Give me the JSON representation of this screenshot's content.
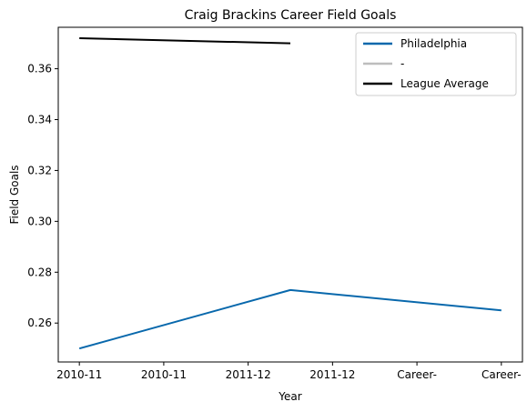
{
  "chart_data": {
    "type": "line",
    "title": "Craig Brackins Career Field Goals",
    "xlabel": "Year",
    "ylabel": "Field Goals",
    "x": [
      0,
      1,
      2,
      3,
      4,
      5
    ],
    "x_tick_labels": [
      "2010-11",
      "2010-11",
      "2011-12",
      "2011-12",
      "Career-",
      "Career-"
    ],
    "y_ticks": [
      0.26,
      0.28,
      0.3,
      0.32,
      0.34,
      0.36
    ],
    "y_tick_labels": [
      "0.26",
      "0.28",
      "0.30",
      "0.32",
      "0.34",
      "0.36"
    ],
    "xlim": [
      -0.25,
      5.25
    ],
    "ylim": [
      0.2447,
      0.3763
    ],
    "legend_position": "top-right",
    "grid": false,
    "series": [
      {
        "name": "Philadelphia",
        "color": "#0868ac",
        "x": [
          0,
          2.5,
          5
        ],
        "y": [
          0.25,
          0.273,
          0.265
        ]
      },
      {
        "name": "-",
        "color": "#bdbdbd",
        "x": [],
        "y": []
      },
      {
        "name": "League Average",
        "color": "#000000",
        "x": [
          0,
          2.5
        ],
        "y": [
          0.372,
          0.37
        ]
      }
    ]
  }
}
